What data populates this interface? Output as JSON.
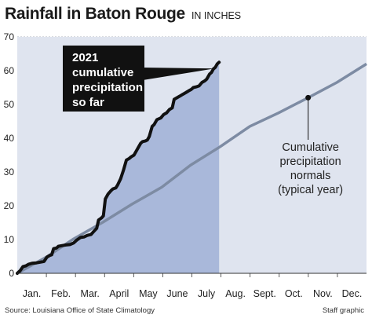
{
  "header": {
    "title": "Rainfall in Baton Rouge",
    "subtitle": "IN INCHES"
  },
  "footer": {
    "source": "Source: Louisiana Office of State Climatology",
    "credit": "Staff graphic"
  },
  "colors": {
    "background_fill": "#dfe4ef",
    "actual_fill": "#a9b8da",
    "actual_line": "#111111",
    "normal_line": "#7d8ba3",
    "callout_box": "#111111",
    "grid": "#9aa0ad"
  },
  "chart_data": {
    "type": "area",
    "title": "Rainfall in Baton Rouge",
    "ylabel": "IN INCHES",
    "xlabel": "",
    "ylim": [
      0,
      70
    ],
    "yticks": [
      0,
      10,
      20,
      30,
      40,
      50,
      60,
      70
    ],
    "xlim": [
      0,
      365
    ],
    "grid": true,
    "months": [
      "Jan.",
      "Feb.",
      "Mar.",
      "April",
      "May",
      "June",
      "July",
      "Aug.",
      "Sept.",
      "Oct.",
      "Nov.",
      "Dec."
    ],
    "series": [
      {
        "name": "2021 cumulative precipitation so far",
        "x": [
          0,
          3,
          6,
          9,
          12,
          16,
          20,
          24,
          28,
          31,
          34,
          36,
          38,
          41,
          43,
          47,
          51,
          55,
          59,
          62,
          66,
          70,
          73,
          77,
          80,
          83,
          85,
          88,
          90,
          92,
          95,
          98,
          100,
          103,
          105,
          108,
          111,
          114,
          117,
          119,
          122,
          126,
          129,
          131,
          134,
          136,
          138,
          141,
          143,
          146,
          150,
          153,
          156,
          159,
          162,
          164,
          167,
          170,
          173,
          176,
          179,
          182,
          184,
          187,
          190,
          193,
          196,
          198,
          201,
          203,
          205,
          207,
          209,
          211
        ],
        "values": [
          0,
          0.8,
          2,
          2.2,
          2.7,
          3,
          3.1,
          3.3,
          3.5,
          4.8,
          5.3,
          5.5,
          7.3,
          7.5,
          8,
          8.2,
          8.4,
          8.5,
          9,
          9.8,
          10.6,
          10.8,
          11.2,
          11.5,
          12.4,
          13.3,
          15.8,
          16.4,
          17,
          22,
          23.5,
          24.5,
          25,
          25.3,
          26.2,
          28,
          30.5,
          33.5,
          34,
          34.5,
          35,
          37,
          38.5,
          39,
          39.2,
          39.5,
          40.5,
          43.5,
          44,
          45.5,
          46,
          47,
          47.5,
          48.5,
          49,
          51.5,
          52,
          52.5,
          53,
          53.5,
          54,
          54.5,
          55,
          55.2,
          55.5,
          56.5,
          57,
          57.5,
          59,
          59.5,
          60.5,
          61,
          62,
          62.5
        ],
        "callout": [
          "2021",
          "cumulative",
          "precipitation",
          "so far"
        ]
      },
      {
        "name": "Cumulative precipitation normals (typical year)",
        "x": [
          0,
          31,
          59,
          90,
          120,
          151,
          181,
          212,
          243,
          273,
          304,
          334,
          365
        ],
        "values": [
          0,
          4.9,
          10.2,
          15.2,
          20.5,
          25.5,
          32,
          37.5,
          43.5,
          47.5,
          52,
          56.5,
          62
        ],
        "callout": [
          "Cumulative",
          "precipitation",
          "normals",
          "(typical year)"
        ]
      }
    ]
  }
}
